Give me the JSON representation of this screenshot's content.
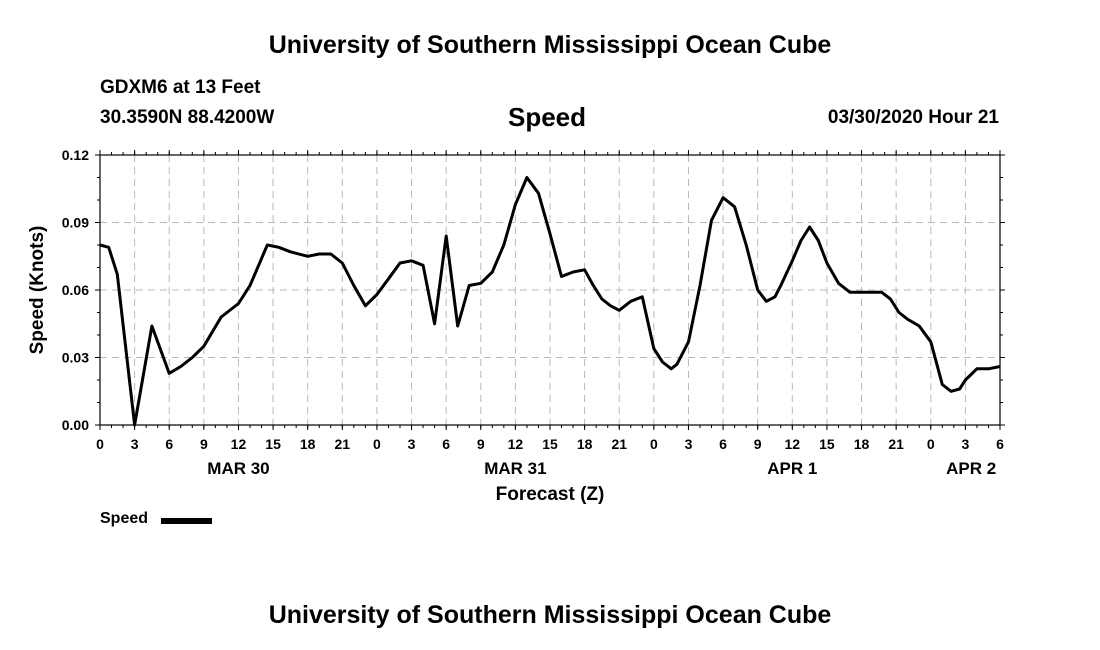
{
  "header": {
    "top_title": "University of Southern Mississippi Ocean Cube",
    "station": "GDXM6 at 13 Feet",
    "coords": "30.3590N 88.4200W",
    "datetime": "03/30/2020 Hour 21",
    "bottom_title": "University of Southern Mississippi Ocean Cube"
  },
  "legend": {
    "label": "Speed"
  },
  "chart_data": {
    "type": "line",
    "title": "Speed",
    "xlabel": "Forecast (Z)",
    "ylabel": "Speed (Knots)",
    "ylim": [
      0,
      0.12
    ],
    "xlim": [
      0,
      78
    ],
    "grid": true,
    "y_ticks": [
      0,
      0.03,
      0.06,
      0.09,
      0.12
    ],
    "y_tick_labels": [
      "0.00",
      "0.03",
      "0.06",
      "0.09",
      "0.12"
    ],
    "x_ticks": [
      0,
      3,
      6,
      9,
      12,
      15,
      18,
      21,
      24,
      27,
      30,
      33,
      36,
      39,
      42,
      45,
      48,
      51,
      54,
      57,
      60,
      63,
      66,
      69,
      72,
      75,
      78
    ],
    "x_tick_labels": [
      "0",
      "3",
      "6",
      "9",
      "12",
      "15",
      "18",
      "21",
      "0",
      "3",
      "6",
      "9",
      "12",
      "15",
      "18",
      "21",
      "0",
      "3",
      "6",
      "9",
      "12",
      "15",
      "18",
      "21",
      "0",
      "3",
      "6"
    ],
    "day_labels": [
      {
        "label": "MAR 30",
        "hour": 12
      },
      {
        "label": "MAR 31",
        "hour": 36
      },
      {
        "label": "APR 1",
        "hour": 60
      },
      {
        "label": "APR 2",
        "hour": 75.5
      }
    ],
    "series": [
      {
        "name": "Speed",
        "color": "#000000",
        "x": [
          0,
          0.75,
          1.5,
          3,
          4.5,
          6,
          7,
          8,
          9,
          10.5,
          12,
          13,
          14.5,
          15.5,
          16.5,
          18,
          19,
          20,
          21,
          22,
          23,
          24,
          25,
          26,
          27,
          28,
          29,
          30,
          31,
          32,
          33,
          34,
          35,
          36,
          37,
          38,
          39,
          40,
          41,
          42,
          42.75,
          43.5,
          44.25,
          45,
          46,
          47,
          48,
          48.75,
          49.5,
          50,
          51,
          52,
          53,
          54,
          55,
          56,
          57,
          57.75,
          58.5,
          59,
          60,
          60.75,
          61.5,
          62.25,
          63,
          64,
          65,
          66,
          67,
          67.75,
          68.5,
          69.25,
          70,
          71,
          72,
          73,
          73.75,
          74.5,
          75,
          76,
          77,
          78
        ],
        "y": [
          0.08,
          0.079,
          0.067,
          0.0,
          0.044,
          0.023,
          0.026,
          0.03,
          0.035,
          0.048,
          0.054,
          0.062,
          0.08,
          0.079,
          0.077,
          0.075,
          0.076,
          0.076,
          0.072,
          0.062,
          0.053,
          0.058,
          0.065,
          0.072,
          0.073,
          0.071,
          0.045,
          0.084,
          0.044,
          0.062,
          0.063,
          0.068,
          0.08,
          0.098,
          0.11,
          0.103,
          0.085,
          0.066,
          0.068,
          0.069,
          0.062,
          0.056,
          0.053,
          0.051,
          0.055,
          0.057,
          0.034,
          0.028,
          0.025,
          0.027,
          0.037,
          0.062,
          0.091,
          0.101,
          0.097,
          0.08,
          0.06,
          0.055,
          0.057,
          0.062,
          0.073,
          0.082,
          0.088,
          0.082,
          0.072,
          0.063,
          0.059,
          0.059,
          0.059,
          0.059,
          0.056,
          0.05,
          0.047,
          0.044,
          0.037,
          0.018,
          0.015,
          0.016,
          0.02,
          0.025,
          0.025,
          0.026
        ]
      }
    ]
  }
}
